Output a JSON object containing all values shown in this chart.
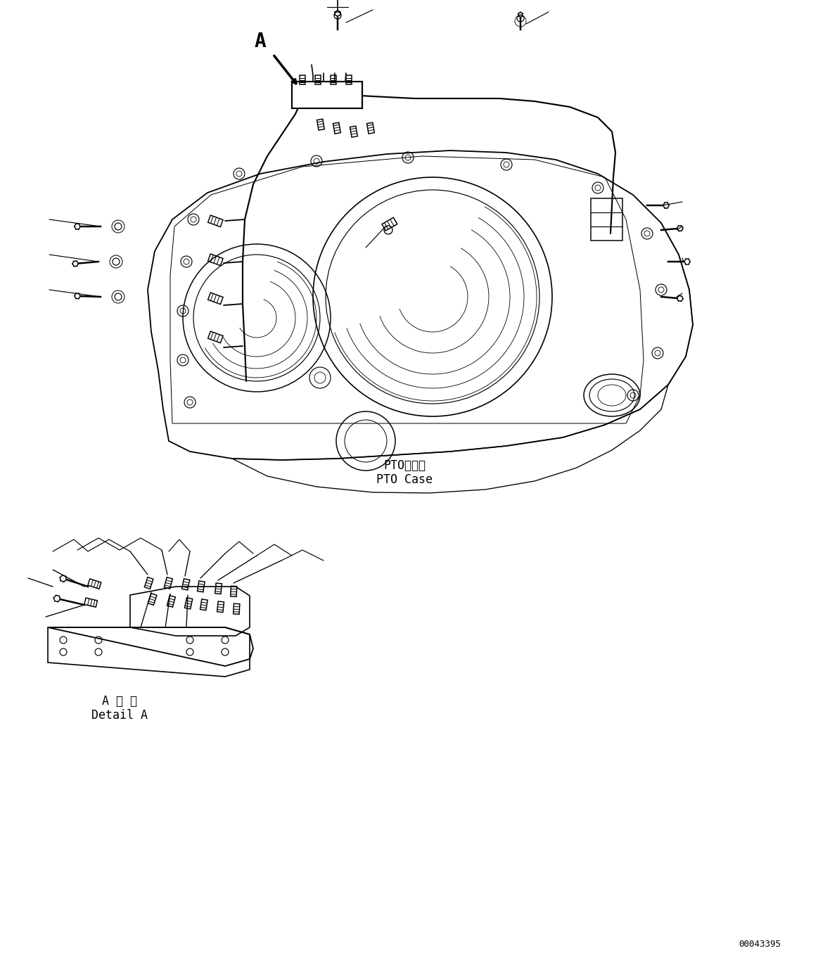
{
  "background_color": "#ffffff",
  "line_color": "#000000",
  "line_width": 1.2,
  "fig_width": 11.63,
  "fig_height": 13.82,
  "dpi": 100,
  "label_pto_case_jp": "PTOケース",
  "label_pto_case_en": "PTO Case",
  "label_detail_a_jp": "A 詳 細",
  "label_detail_a_en": "Detail A",
  "label_a": "A",
  "label_id": "00043395",
  "text_font": "monospace",
  "label_fontsize": 10,
  "id_fontsize": 9
}
